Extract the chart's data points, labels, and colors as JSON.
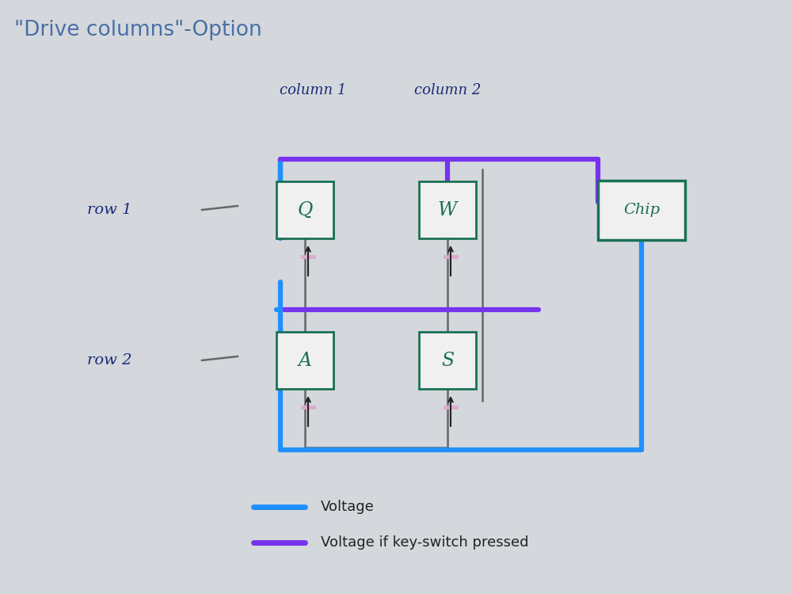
{
  "title": "\"Drive columns\"-Option",
  "title_color": "#4a6fa5",
  "title_fontsize": 19,
  "bg_color": "#d4d8dc",
  "col1_label": "column 1",
  "col2_label": "column 2",
  "row1_label": "row 1",
  "row2_label": "row 2",
  "key_labels": [
    "Q",
    "W",
    "A",
    "S"
  ],
  "chip_label": "Chip",
  "blue_color": "#2090ff",
  "purple_color": "#7733ee",
  "green_color": "#1a7055",
  "wire_color": "#666666",
  "legend_voltage": "Voltage",
  "legend_voltage_pressed": "Voltage if key-switch pressed",
  "handwritten_color": "#1a2a7a",
  "label_color": "#1a2a7a"
}
